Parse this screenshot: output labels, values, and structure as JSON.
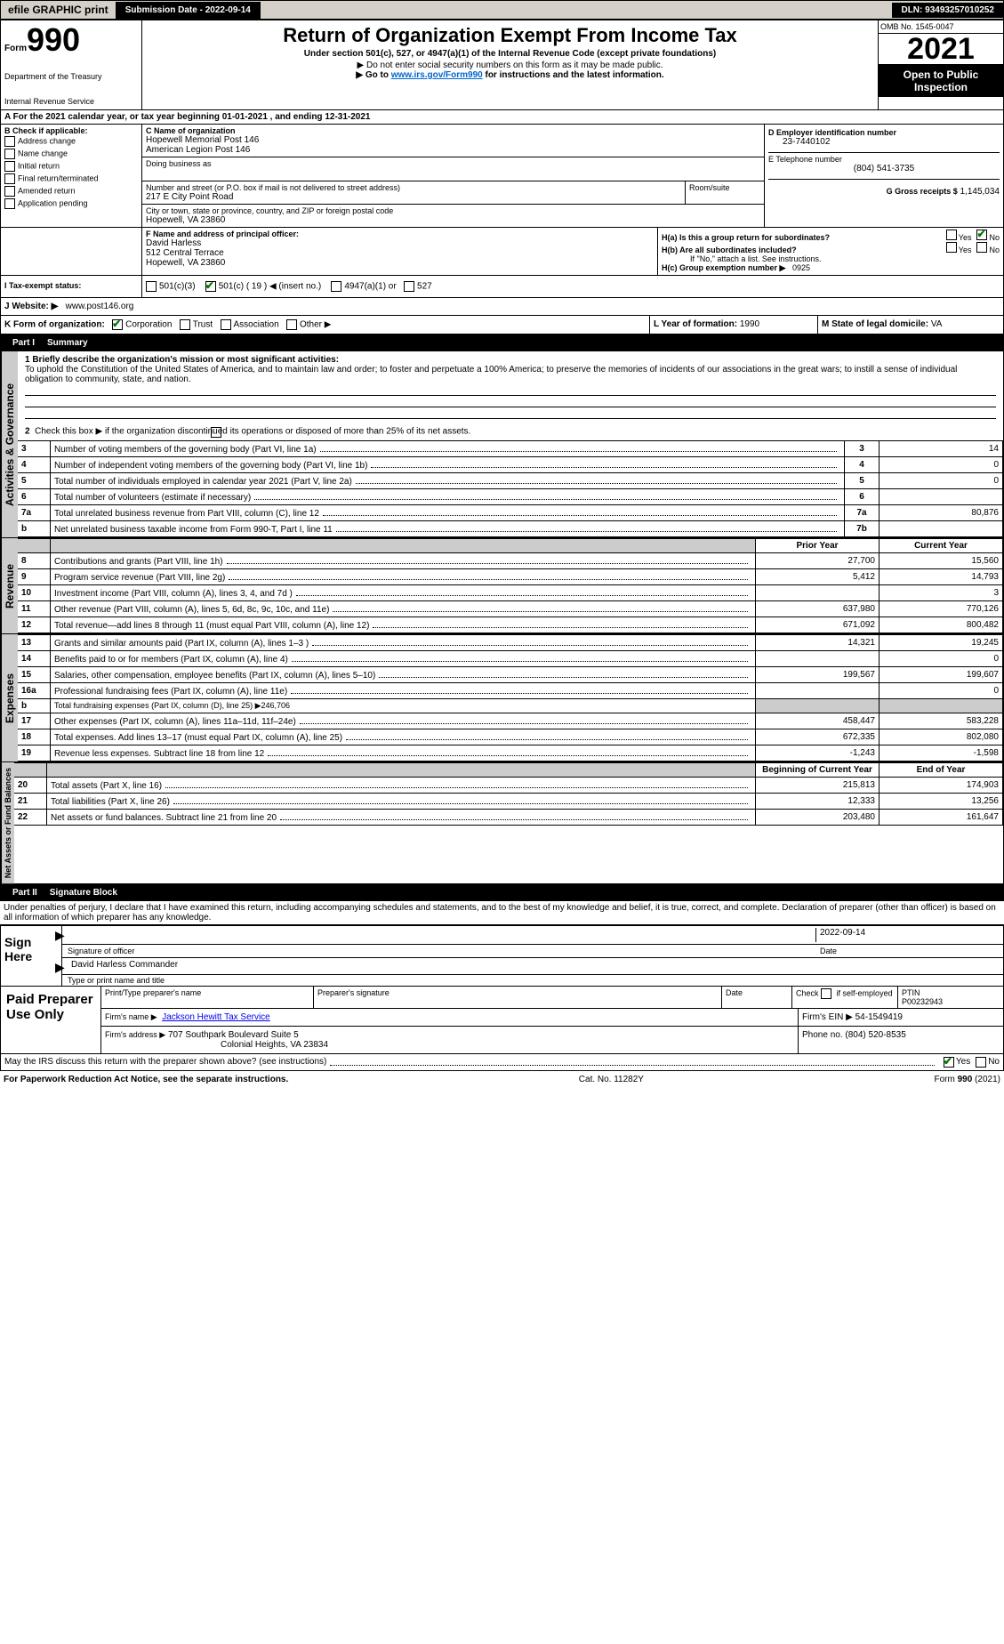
{
  "topbar": {
    "efile": "efile GRAPHIC print",
    "submit": "Submission Date - 2022-09-14",
    "dln": "DLN: 93493257010252"
  },
  "header": {
    "form_prefix": "Form",
    "form_num": "990",
    "title": "Return of Organization Exempt From Income Tax",
    "sub": "Under section 501(c), 527, or 4947(a)(1) of the Internal Revenue Code (except private foundations)",
    "ssn": "▶ Do not enter social security numbers on this form as it may be made public.",
    "goto_pre": "▶ Go to ",
    "goto_link": "www.irs.gov/Form990",
    "goto_post": " for instructions and the latest information.",
    "dept1": "Department of the Treasury",
    "dept2": "Internal Revenue Service",
    "omb": "OMB No. 1545-0047",
    "year": "2021",
    "open1": "Open to Public",
    "open2": "Inspection"
  },
  "periodA": "A For the 2021 calendar year, or tax year beginning 01-01-2021    , and ending 12-31-2021",
  "boxB": {
    "label": "B Check if applicable:",
    "items": [
      "Address change",
      "Name change",
      "Initial return",
      "Final return/terminated",
      "Amended return",
      "Application pending"
    ]
  },
  "boxC": {
    "nameLbl": "C Name of organization",
    "name1": "Hopewell Memorial Post 146",
    "name2": "American Legion Post 146",
    "dba": "Doing business as",
    "streetLbl": "Number and street (or P.O. box if mail is not delivered to street address)",
    "room": "Room/suite",
    "street": "217 E City Point Road",
    "cityLbl": "City or town, state or province, country, and ZIP or foreign postal code",
    "city": "Hopewell, VA  23860"
  },
  "boxD": {
    "lbl": "D Employer identification number",
    "val": "23-7440102"
  },
  "boxE": {
    "lbl": "E Telephone number",
    "val": "(804) 541-3735"
  },
  "boxG": {
    "lbl": "G Gross receipts $",
    "val": "1,145,034"
  },
  "boxF": {
    "lbl": "F  Name and address of principal officer:",
    "name": "David Harless",
    "addr1": "512 Central Terrace",
    "addr2": "Hopewell, VA  23860"
  },
  "boxH": {
    "a": "H(a)  Is this a group return for subordinates?",
    "b": "H(b)  Are all subordinates included?",
    "bnote": "If \"No,\" attach a list. See instructions.",
    "c_lbl": "H(c)  Group exemption number ▶",
    "c_val": "0925"
  },
  "taxI": {
    "lbl": "I   Tax-exempt status:",
    "opts": [
      "501(c)(3)",
      "501(c) ( 19 ) ◀ (insert no.)",
      "4947(a)(1) or",
      "527"
    ]
  },
  "boxJ": {
    "lbl": "J   Website: ▶",
    "val": "www.post146.org"
  },
  "boxK": {
    "lbl": "K Form of organization:",
    "opts": [
      "Corporation",
      "Trust",
      "Association",
      "Other ▶"
    ]
  },
  "boxL": {
    "lbl": "L Year of formation:",
    "val": "1990"
  },
  "boxM": {
    "lbl": "M State of legal domicile:",
    "val": "VA"
  },
  "part1": {
    "bar": "Part I",
    "title": "Summary"
  },
  "mission": {
    "lbl": "1  Briefly describe the organization's mission or most significant activities:",
    "text": "To uphold the Constitution of the United States of America, and to maintain law and order; to foster and perpetuate a 100% America; to preserve the memories of incidents of our associations in the great wars; to instill a sense of individual obligation to community, state, and nation."
  },
  "gov": {
    "l2": "Check this box ▶       if the organization discontinued its operations or disposed of more than 25% of its net assets.",
    "rows": [
      {
        "n": "3",
        "t": "Number of voting members of the governing body (Part VI, line 1a)",
        "c": "3",
        "v": "14"
      },
      {
        "n": "4",
        "t": "Number of independent voting members of the governing body (Part VI, line 1b)",
        "c": "4",
        "v": "0"
      },
      {
        "n": "5",
        "t": "Total number of individuals employed in calendar year 2021 (Part V, line 2a)",
        "c": "5",
        "v": "0"
      },
      {
        "n": "6",
        "t": "Total number of volunteers (estimate if necessary)",
        "c": "6",
        "v": ""
      },
      {
        "n": "7a",
        "t": "Total unrelated business revenue from Part VIII, column (C), line 12",
        "c": "7a",
        "v": "80,876"
      },
      {
        "n": "b",
        "t": "Net unrelated business taxable income from Form 990-T, Part I, line 11",
        "c": "7b",
        "v": ""
      }
    ]
  },
  "revhdr": {
    "prior": "Prior Year",
    "curr": "Current Year"
  },
  "revenue": [
    {
      "n": "8",
      "t": "Contributions and grants (Part VIII, line 1h)",
      "p": "27,700",
      "c": "15,560"
    },
    {
      "n": "9",
      "t": "Program service revenue (Part VIII, line 2g)",
      "p": "5,412",
      "c": "14,793"
    },
    {
      "n": "10",
      "t": "Investment income (Part VIII, column (A), lines 3, 4, and 7d )",
      "p": "",
      "c": "3"
    },
    {
      "n": "11",
      "t": "Other revenue (Part VIII, column (A), lines 5, 6d, 8c, 9c, 10c, and 11e)",
      "p": "637,980",
      "c": "770,126"
    },
    {
      "n": "12",
      "t": "Total revenue—add lines 8 through 11 (must equal Part VIII, column (A), line 12)",
      "p": "671,092",
      "c": "800,482"
    }
  ],
  "expenses": [
    {
      "n": "13",
      "t": "Grants and similar amounts paid (Part IX, column (A), lines 1–3 )",
      "p": "14,321",
      "c": "19,245"
    },
    {
      "n": "14",
      "t": "Benefits paid to or for members (Part IX, column (A), line 4)",
      "p": "",
      "c": "0"
    },
    {
      "n": "15",
      "t": "Salaries, other compensation, employee benefits (Part IX, column (A), lines 5–10)",
      "p": "199,567",
      "c": "199,607"
    },
    {
      "n": "16a",
      "t": "Professional fundraising fees (Part IX, column (A), line 11e)",
      "p": "",
      "c": "0"
    },
    {
      "n": "b",
      "t": "Total fundraising expenses (Part IX, column (D), line 25) ▶246,706",
      "shade": true
    },
    {
      "n": "17",
      "t": "Other expenses (Part IX, column (A), lines 11a–11d, 11f–24e)",
      "p": "458,447",
      "c": "583,228"
    },
    {
      "n": "18",
      "t": "Total expenses. Add lines 13–17 (must equal Part IX, column (A), line 25)",
      "p": "672,335",
      "c": "802,080"
    },
    {
      "n": "19",
      "t": "Revenue less expenses. Subtract line 18 from line 12",
      "p": "-1,243",
      "c": "-1,598"
    }
  ],
  "nethdr": {
    "beg": "Beginning of Current Year",
    "end": "End of Year"
  },
  "netassets": [
    {
      "n": "20",
      "t": "Total assets (Part X, line 16)",
      "p": "215,813",
      "c": "174,903"
    },
    {
      "n": "21",
      "t": "Total liabilities (Part X, line 26)",
      "p": "12,333",
      "c": "13,256"
    },
    {
      "n": "22",
      "t": "Net assets or fund balances. Subtract line 21 from line 20",
      "p": "203,480",
      "c": "161,647"
    }
  ],
  "tabs": {
    "gov": "Activities & Governance",
    "rev": "Revenue",
    "exp": "Expenses",
    "net": "Net Assets or Fund Balances"
  },
  "part2": {
    "bar": "Part II",
    "title": "Signature Block",
    "decl": "Under penalties of perjury, I declare that I have examined this return, including accompanying schedules and statements, and to the best of my knowledge and belief, it is true, correct, and complete. Declaration of preparer (other than officer) is based on all information of which preparer has any knowledge."
  },
  "sign": {
    "here": "Sign Here",
    "sigoff": "Signature of officer",
    "date": "Date",
    "dateval": "2022-09-14",
    "name": "David Harless  Commander",
    "namelbl": "Type or print name and title"
  },
  "paid": {
    "lbl": "Paid Preparer Use Only",
    "h1": "Print/Type preparer's name",
    "h2": "Preparer's signature",
    "h3": "Date",
    "h4pre": "Check",
    "h4post": "if self-employed",
    "h5": "PTIN",
    "ptin": "P00232943",
    "firmlbl": "Firm's name   ▶",
    "firm": "Jackson Hewitt Tax Service",
    "einlbl": "Firm's EIN ▶",
    "ein": "54-1549419",
    "addrlbl": "Firm's address ▶",
    "addr1": "707 Southpark Boulevard Suite 5",
    "addr2": "Colonial Heights, VA  23834",
    "phonelbl": "Phone no.",
    "phone": "(804) 520-8535"
  },
  "mayirs": "May the IRS discuss this return with the preparer shown above? (see instructions)",
  "yn": {
    "yes": "Yes",
    "no": "No"
  },
  "footer": {
    "pra": "For Paperwork Reduction Act Notice, see the separate instructions.",
    "cat": "Cat. No. 11282Y",
    "form": "Form 990 (2021)"
  }
}
